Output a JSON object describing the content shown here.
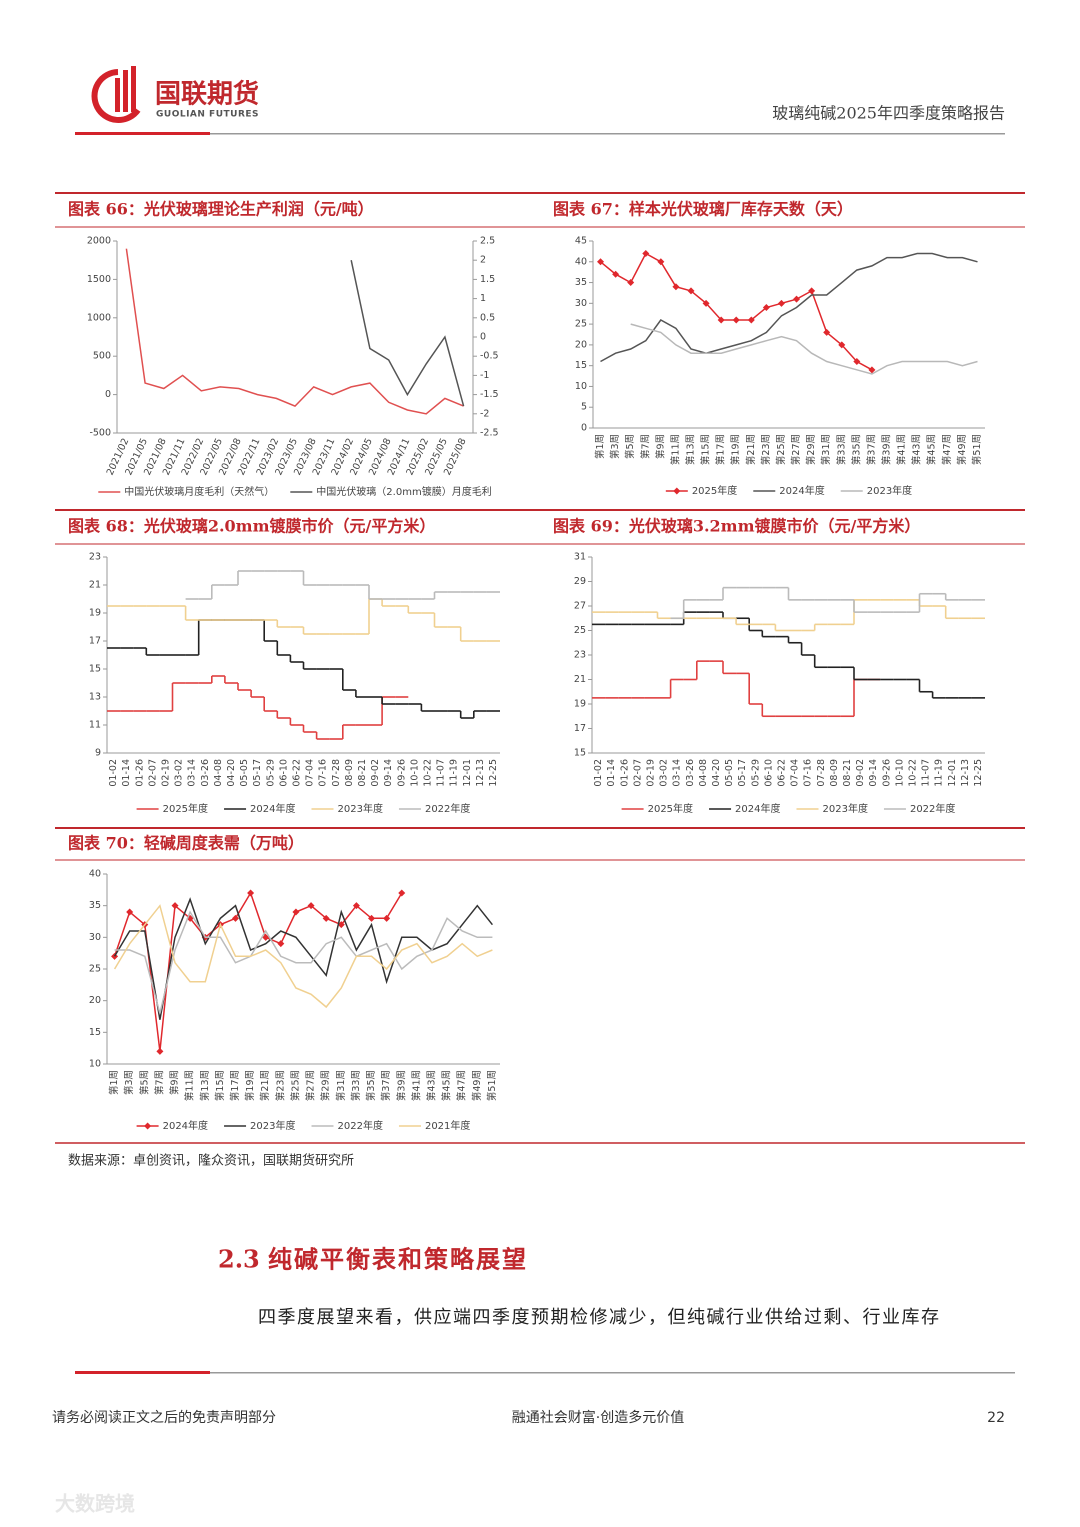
{
  "header": {
    "company": "国联期货",
    "company_en": "GUOLIAN FUTURES",
    "report_title": "玻璃纯碱2025年四季度策略报告"
  },
  "chart_data": [
    {
      "type": "line",
      "title": "图表 66：光伏玻璃理论生产利润（元/吨）",
      "categories": [
        "2021/02",
        "2021/05",
        "2021/08",
        "2021/11",
        "2022/02",
        "2022/05",
        "2022/08",
        "2022/11",
        "2023/02",
        "2023/05",
        "2023/08",
        "2023/11",
        "2024/02",
        "2024/05",
        "2024/08",
        "2024/11",
        "2025/02",
        "2025/05",
        "2025/08"
      ],
      "ylim": [
        -500,
        2000
      ],
      "yticks": [
        -500,
        0,
        500,
        1000,
        1500,
        2000
      ],
      "y2lim": [
        -2.5,
        2.5
      ],
      "y2ticks": [
        -2.5,
        -2,
        -1.5,
        -1,
        -0.5,
        0,
        0.5,
        1,
        1.5,
        2,
        2.5
      ],
      "series": [
        {
          "name": "中国光伏玻璃月度毛利（天然气）",
          "color": "#e05050",
          "values": [
            1900,
            150,
            80,
            250,
            50,
            100,
            80,
            0,
            -50,
            -150,
            100,
            0,
            100,
            150,
            -100,
            -200,
            -250,
            -50,
            -150
          ]
        },
        {
          "name": "中国光伏玻璃（2.0mm镀膜）月度毛利",
          "color": "#555555",
          "axis": "y2",
          "values": [
            null,
            null,
            null,
            null,
            null,
            null,
            null,
            null,
            null,
            null,
            null,
            null,
            2.0,
            -0.3,
            -0.6,
            -1.5,
            -0.7,
            0,
            -1.8
          ]
        }
      ]
    },
    {
      "type": "line",
      "title": "图表 67：样本光伏玻璃厂库存天数（天）",
      "categories": [
        "第1周",
        "第3周",
        "第5周",
        "第7周",
        "第9周",
        "第11周",
        "第13周",
        "第15周",
        "第17周",
        "第19周",
        "第21周",
        "第23周",
        "第25周",
        "第27周",
        "第29周",
        "第31周",
        "第33周",
        "第35周",
        "第37周",
        "第39周",
        "第41周",
        "第43周",
        "第45周",
        "第47周",
        "第49周",
        "第51周"
      ],
      "ylim": [
        0,
        45
      ],
      "yticks": [
        0,
        5,
        10,
        15,
        20,
        25,
        30,
        35,
        40,
        45
      ],
      "series": [
        {
          "name": "2025年度",
          "color": "#e0282d",
          "marker": "diamond",
          "values": [
            40,
            37,
            35,
            42,
            40,
            34,
            33,
            30,
            26,
            26,
            26,
            29,
            30,
            31,
            33,
            23,
            20,
            16,
            14,
            null,
            null,
            null,
            null,
            null,
            null,
            null
          ]
        },
        {
          "name": "2024年度",
          "color": "#555555",
          "values": [
            16,
            18,
            19,
            21,
            26,
            24,
            19,
            18,
            19,
            20,
            21,
            23,
            27,
            29,
            32,
            32,
            35,
            38,
            39,
            41,
            41,
            42,
            42,
            41,
            41,
            40
          ]
        },
        {
          "name": "2023年度",
          "color": "#b8b8b8",
          "values": [
            null,
            null,
            25,
            24,
            23,
            20,
            18,
            18,
            18,
            19,
            20,
            21,
            22,
            21,
            18,
            16,
            15,
            14,
            13,
            15,
            16,
            16,
            16,
            16,
            15,
            16
          ]
        }
      ]
    },
    {
      "type": "line",
      "step": true,
      "title": "图表 68：光伏玻璃2.0mm镀膜市价（元/平方米）",
      "categories": [
        "01-02",
        "01-14",
        "01-26",
        "02-07",
        "02-19",
        "03-02",
        "03-14",
        "03-26",
        "04-08",
        "04-20",
        "05-05",
        "05-17",
        "05-29",
        "06-10",
        "06-22",
        "07-04",
        "07-16",
        "07-28",
        "08-09",
        "08-21",
        "09-02",
        "09-14",
        "09-26",
        "10-10",
        "10-22",
        "11-07",
        "11-19",
        "12-01",
        "12-13",
        "12-25"
      ],
      "ylim": [
        9,
        23
      ],
      "yticks": [
        9,
        11,
        13,
        15,
        17,
        19,
        21,
        23
      ],
      "series": [
        {
          "name": "2025年度",
          "color": "#e04040",
          "values": [
            12,
            12,
            12,
            12,
            12,
            14,
            14,
            14,
            14.5,
            14,
            13.5,
            13,
            12,
            11.5,
            11,
            10.5,
            10,
            10,
            11,
            11,
            11,
            13,
            13,
            null,
            null,
            null,
            null,
            null,
            null,
            null
          ]
        },
        {
          "name": "2024年度",
          "color": "#222222",
          "values": [
            16.5,
            16.5,
            16.5,
            16,
            16,
            16,
            16,
            18.5,
            18.5,
            18.5,
            18.5,
            18.5,
            17,
            16,
            15.5,
            15,
            15,
            15,
            13.5,
            13,
            13,
            12.5,
            12.5,
            12.5,
            12,
            12,
            12,
            11.5,
            12,
            12
          ]
        },
        {
          "name": "2023年度",
          "color": "#f0d090",
          "values": [
            19.5,
            19.5,
            19.5,
            19.5,
            19.5,
            19.5,
            18.5,
            18.5,
            18.5,
            18.5,
            18.5,
            18.5,
            18.5,
            18,
            18,
            17.5,
            17.5,
            17.5,
            17.5,
            17.5,
            20,
            19.5,
            19.5,
            19,
            19,
            18,
            18,
            17,
            17,
            17
          ]
        },
        {
          "name": "2022年度",
          "color": "#bbbbbb",
          "values": [
            null,
            null,
            null,
            null,
            null,
            null,
            20,
            20,
            21,
            21,
            22,
            22,
            22,
            22,
            22,
            21,
            21,
            21,
            21,
            21,
            20,
            20,
            20,
            20,
            20,
            20.5,
            20.5,
            20.5,
            20.5,
            20.5
          ]
        }
      ]
    },
    {
      "type": "line",
      "step": true,
      "title": "图表 69：光伏玻璃3.2mm镀膜市价（元/平方米）",
      "categories": [
        "01-02",
        "01-14",
        "01-26",
        "02-07",
        "02-19",
        "03-02",
        "03-14",
        "03-26",
        "04-08",
        "04-20",
        "05-05",
        "05-17",
        "05-29",
        "06-10",
        "06-22",
        "07-04",
        "07-16",
        "07-28",
        "08-09",
        "08-21",
        "09-02",
        "09-14",
        "09-26",
        "10-10",
        "10-22",
        "11-07",
        "11-19",
        "12-01",
        "12-13",
        "12-25"
      ],
      "ylim": [
        15,
        31
      ],
      "yticks": [
        15,
        17,
        19,
        21,
        23,
        25,
        27,
        29,
        31
      ],
      "series": [
        {
          "name": "2025年度",
          "color": "#e04040",
          "values": [
            19.5,
            19.5,
            19.5,
            19.5,
            19.5,
            19.5,
            21,
            21,
            22.5,
            22.5,
            21.5,
            21.5,
            19,
            18,
            18,
            18,
            18,
            18,
            18,
            18,
            21,
            21,
            null,
            null,
            null,
            null,
            null,
            null,
            null,
            null
          ]
        },
        {
          "name": "2024年度",
          "color": "#222222",
          "values": [
            25.5,
            25.5,
            25.5,
            25.5,
            25.5,
            25.5,
            25.5,
            26.5,
            26.5,
            26.5,
            26,
            26,
            25,
            24.5,
            24.5,
            24,
            23,
            22,
            22,
            22,
            21,
            21,
            21,
            21,
            21,
            20,
            19.5,
            19.5,
            19.5,
            19.5
          ]
        },
        {
          "name": "2023年度",
          "color": "#f0d090",
          "values": [
            26.5,
            26.5,
            26.5,
            26.5,
            26.5,
            26,
            26,
            26,
            26,
            26,
            26,
            25.5,
            25.5,
            25.5,
            25,
            25,
            25,
            25.5,
            25.5,
            25.5,
            27.5,
            27.5,
            27.5,
            27.5,
            27.5,
            27,
            27,
            26,
            26,
            26
          ]
        },
        {
          "name": "2022年度",
          "color": "#bbbbbb",
          "values": [
            null,
            null,
            null,
            null,
            null,
            null,
            26,
            27.5,
            27.5,
            27.5,
            28.5,
            28.5,
            28.5,
            28.5,
            28.5,
            27.5,
            27.5,
            27.5,
            27.5,
            27.5,
            26.5,
            26.5,
            26.5,
            26.5,
            26.5,
            28,
            28,
            27.5,
            27.5,
            27.5
          ]
        }
      ]
    },
    {
      "type": "line",
      "title": "图表 70：轻碱周度表需（万吨）",
      "categories": [
        "第1周",
        "第3周",
        "第5周",
        "第7周",
        "第9周",
        "第11周",
        "第13周",
        "第15周",
        "第17周",
        "第19周",
        "第21周",
        "第23周",
        "第25周",
        "第27周",
        "第29周",
        "第31周",
        "第33周",
        "第35周",
        "第37周",
        "第39周",
        "第41周",
        "第43周",
        "第45周",
        "第47周",
        "第49周",
        "第51周"
      ],
      "ylim": [
        10,
        40
      ],
      "yticks": [
        10,
        15,
        20,
        25,
        30,
        35,
        40
      ],
      "series": [
        {
          "name": "2024年度",
          "color": "#e0282d",
          "marker": "diamond",
          "values": [
            27,
            34,
            32,
            12,
            35,
            33,
            30,
            32,
            33,
            37,
            30,
            29,
            34,
            35,
            33,
            32,
            35,
            33,
            33,
            37,
            null,
            null,
            null,
            null,
            null,
            null
          ]
        },
        {
          "name": "2023年度",
          "color": "#333333",
          "values": [
            27,
            31,
            31,
            17,
            30,
            36,
            29,
            33,
            35,
            28,
            29,
            31,
            30,
            27,
            24,
            34,
            28,
            32,
            23,
            30,
            30,
            28,
            29,
            32,
            35,
            32
          ]
        },
        {
          "name": "2022年度",
          "color": "#bbbbbb",
          "values": [
            28,
            28,
            27,
            18,
            28,
            34,
            30,
            30,
            26,
            27,
            31,
            27,
            26,
            26,
            29,
            30,
            27,
            28,
            29,
            25,
            27,
            28,
            33,
            31,
            30,
            30
          ]
        },
        {
          "name": "2021年度",
          "color": "#f0d090",
          "values": [
            25,
            29,
            32,
            35,
            26,
            23,
            23,
            32,
            27,
            27,
            28,
            26,
            22,
            21,
            19,
            22,
            27,
            27,
            25,
            28,
            29,
            26,
            27,
            29,
            27,
            28
          ]
        }
      ]
    }
  ],
  "source": "数据来源：卓创资讯，隆众资讯，国联期货研究所",
  "section": {
    "number": "2.3",
    "title": "纯碱平衡表和策略展望"
  },
  "paragraph": "四季度展望来看，供应端四季度预期检修减少，但纯碱行业供给过剩、行业库存",
  "footer": {
    "disclaimer": "请务必阅读正文之后的免责声明部分",
    "slogan": "融通社会财富·创造多元价值",
    "page": 22
  },
  "watermark": "大数跨境"
}
